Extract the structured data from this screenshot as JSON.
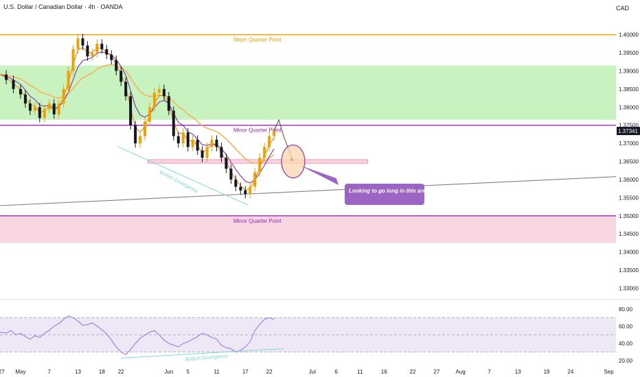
{
  "header": {
    "title": "U.S. Dollar / Canadian Dollar · 4h · OANDA",
    "currency": "CAD"
  },
  "chart_data": {
    "type": "line",
    "title": "U.S. Dollar / Canadian Dollar · 4h · OANDA",
    "price_axis": {
      "ticks": [
        "1.40000",
        "1.39500",
        "1.39000",
        "1.38500",
        "1.38000",
        "1.37500",
        "1.37000",
        "1.36500",
        "1.36000",
        "1.35500",
        "1.35000",
        "1.34500",
        "1.34000",
        "1.33500",
        "1.33000"
      ],
      "ylim": [
        1.3282,
        1.4073
      ],
      "last_price": "1.37341",
      "last_price_value": 1.37341
    },
    "rsi_axis": {
      "ticks": [
        "80.00",
        "60.00",
        "40.00",
        "20.00"
      ],
      "ylim": [
        13,
        87
      ],
      "upper_band": 70,
      "lower_band": 30,
      "mid": 50
    },
    "x_axis": {
      "labels": [
        {
          "label": "27",
          "day": -4
        },
        {
          "label": "May",
          "day": 0
        },
        {
          "label": "7",
          "day": 6
        },
        {
          "label": "13",
          "day": 12
        },
        {
          "label": "18",
          "day": 17
        },
        {
          "label": "22",
          "day": 21
        },
        {
          "label": "Jun",
          "day": 31
        },
        {
          "label": "5",
          "day": 35
        },
        {
          "label": "11",
          "day": 41
        },
        {
          "label": "17",
          "day": 47
        },
        {
          "label": "22",
          "day": 52
        },
        {
          "label": "Jul",
          "day": 61
        },
        {
          "label": "6",
          "day": 66
        },
        {
          "label": "11",
          "day": 71
        },
        {
          "label": "16",
          "day": 76
        },
        {
          "label": "22",
          "day": 82
        },
        {
          "label": "27",
          "day": 87
        },
        {
          "label": "Aug",
          "day": 92
        },
        {
          "label": "7",
          "day": 98
        },
        {
          "label": "13",
          "day": 104
        },
        {
          "label": "19",
          "day": 110
        },
        {
          "label": "24",
          "day": 115
        },
        {
          "label": "Sep",
          "day": 123
        }
      ],
      "xlim": [
        -4.3,
        124.5
      ]
    },
    "price_series": [
      [
        -4.3,
        1.389
      ],
      [
        -3,
        1.3875
      ],
      [
        -1.5,
        1.385
      ],
      [
        0,
        1.3835
      ],
      [
        1,
        1.381
      ],
      [
        2,
        1.379
      ],
      [
        3,
        1.38
      ],
      [
        4,
        1.377
      ],
      [
        5,
        1.3795
      ],
      [
        6,
        1.381
      ],
      [
        7,
        1.378
      ],
      [
        8,
        1.381
      ],
      [
        9,
        1.385
      ],
      [
        10,
        1.39
      ],
      [
        11,
        1.396
      ],
      [
        12,
        1.399
      ],
      [
        13,
        1.397
      ],
      [
        14,
        1.394
      ],
      [
        15,
        1.395
      ],
      [
        16,
        1.3975
      ],
      [
        17,
        1.396
      ],
      [
        18,
        1.3945
      ],
      [
        19,
        1.393
      ],
      [
        20,
        1.39
      ],
      [
        21,
        1.387
      ],
      [
        22,
        1.383
      ],
      [
        23,
        1.375
      ],
      [
        24,
        1.37
      ],
      [
        25,
        1.372
      ],
      [
        26,
        1.376
      ],
      [
        27,
        1.38
      ],
      [
        28,
        1.384
      ],
      [
        29,
        1.385
      ],
      [
        30,
        1.383
      ],
      [
        31,
        1.379
      ],
      [
        32,
        1.372
      ],
      [
        33,
        1.37
      ],
      [
        34,
        1.373
      ],
      [
        35,
        1.369
      ],
      [
        36,
        1.371
      ],
      [
        37,
        1.368
      ],
      [
        38,
        1.366
      ],
      [
        39,
        1.369
      ],
      [
        40,
        1.371
      ],
      [
        41,
        1.369
      ],
      [
        42,
        1.366
      ],
      [
        43,
        1.363
      ],
      [
        44,
        1.36
      ],
      [
        45,
        1.358
      ],
      [
        46,
        1.357
      ],
      [
        47,
        1.356
      ],
      [
        48,
        1.358
      ],
      [
        49,
        1.362
      ],
      [
        50,
        1.366
      ],
      [
        51,
        1.369
      ],
      [
        52,
        1.372
      ],
      [
        53,
        1.3734
      ]
    ],
    "rsi_series": [
      [
        -4.3,
        53
      ],
      [
        -3,
        52
      ],
      [
        -2,
        55
      ],
      [
        -1,
        50
      ],
      [
        0,
        52
      ],
      [
        1,
        48
      ],
      [
        2,
        45
      ],
      [
        3,
        49
      ],
      [
        4,
        47
      ],
      [
        5,
        52
      ],
      [
        6,
        55
      ],
      [
        7,
        60
      ],
      [
        8,
        63
      ],
      [
        9,
        68
      ],
      [
        10,
        72
      ],
      [
        11,
        70
      ],
      [
        12,
        66
      ],
      [
        13,
        61
      ],
      [
        14,
        62
      ],
      [
        15,
        64
      ],
      [
        16,
        60
      ],
      [
        17,
        56
      ],
      [
        18,
        51
      ],
      [
        19,
        44
      ],
      [
        20,
        36
      ],
      [
        21,
        30
      ],
      [
        22,
        27
      ],
      [
        23,
        33
      ],
      [
        24,
        40
      ],
      [
        25,
        46
      ],
      [
        26,
        50
      ],
      [
        27,
        53
      ],
      [
        28,
        55
      ],
      [
        29,
        50
      ],
      [
        30,
        44
      ],
      [
        31,
        40
      ],
      [
        32,
        38
      ],
      [
        33,
        36
      ],
      [
        34,
        40
      ],
      [
        35,
        42
      ],
      [
        36,
        45
      ],
      [
        37,
        48
      ],
      [
        38,
        52
      ],
      [
        39,
        50
      ],
      [
        40,
        47
      ],
      [
        41,
        45
      ],
      [
        42,
        38
      ],
      [
        43,
        35
      ],
      [
        44,
        34
      ],
      [
        45,
        30
      ],
      [
        46,
        32
      ],
      [
        47,
        36
      ],
      [
        48,
        42
      ],
      [
        49,
        55
      ],
      [
        50,
        62
      ],
      [
        51,
        68
      ],
      [
        52,
        70
      ],
      [
        53,
        68
      ]
    ],
    "annotations": {
      "major_quarter_point": {
        "label": "Major Quarter Point",
        "price": 1.4,
        "color": "#f0a000"
      },
      "minor_quarter_point_top": {
        "label": "Minor Quarter Point",
        "price": 1.375,
        "color": "#9c27b0"
      },
      "minor_quarter_point_bottom": {
        "label": "Minor Quarter Point",
        "price": 1.35,
        "color": "#9c27b0"
      },
      "bullish_divergence_price": {
        "label": "Bullish Divergence"
      },
      "bullish_divergence_rsi": {
        "label": "Bullish Divergence"
      },
      "callout": {
        "label": "Looking to go long in this area."
      }
    },
    "colors": {
      "green_zone": "#c8f2c0",
      "pink_zone": "#f8d7e3",
      "candle_up": "#f0a000",
      "candle_down": "#131722",
      "ema_short": "#f57c00",
      "ema_mid": "#7b1fa2",
      "ema_long": "#f7b35a",
      "rsi_line": "#9c88dd",
      "divergence": "#7fd6d6",
      "trendline": "#808080",
      "price_label_bg": "#131722",
      "callout_bg": "#9c65c4"
    }
  }
}
